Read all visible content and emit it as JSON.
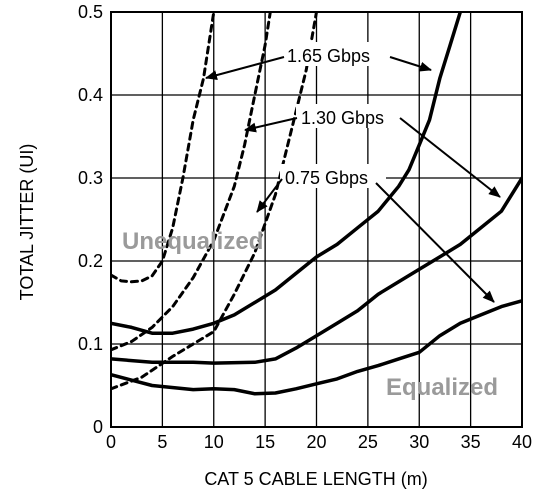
{
  "chart_data": {
    "type": "line",
    "xlabel": "CAT 5 CABLE LENGTH (m)",
    "ylabel": "TOTAL JITTER (UI)",
    "xlim": [
      0,
      40
    ],
    "ylim": [
      0,
      0.5
    ],
    "x_ticks": [
      "0",
      "5",
      "10",
      "15",
      "20",
      "25",
      "30",
      "35",
      "40"
    ],
    "y_ticks": [
      "0",
      "0.1",
      "0.2",
      "0.3",
      "0.4",
      "0.5"
    ],
    "grid": true,
    "region_labels": {
      "unequalized": "Unequalized",
      "equalized": "Equalized"
    },
    "rate_labels": [
      "1.65 Gbps",
      "1.30 Gbps",
      "0.75 Gbps"
    ],
    "series": [
      {
        "name": "1.65 Gbps",
        "group": "Unequalized",
        "style": "dashed",
        "points": [
          [
            0,
            0.183
          ],
          [
            1,
            0.176
          ],
          [
            2,
            0.175
          ],
          [
            3,
            0.176
          ],
          [
            4,
            0.182
          ],
          [
            5,
            0.2
          ],
          [
            6,
            0.24
          ],
          [
            7,
            0.3
          ],
          [
            8,
            0.37
          ],
          [
            9,
            0.42
          ],
          [
            10,
            0.5
          ]
        ]
      },
      {
        "name": "1.30 Gbps",
        "group": "Unequalized",
        "style": "dashed",
        "points": [
          [
            0,
            0.093
          ],
          [
            2,
            0.103
          ],
          [
            4,
            0.12
          ],
          [
            6,
            0.145
          ],
          [
            8,
            0.18
          ],
          [
            10,
            0.225
          ],
          [
            12,
            0.29
          ],
          [
            13,
            0.34
          ],
          [
            14,
            0.4
          ],
          [
            15,
            0.46
          ],
          [
            15.5,
            0.5
          ]
        ]
      },
      {
        "name": "0.75 Gbps",
        "group": "Unequalized",
        "style": "dashed",
        "points": [
          [
            0,
            0.046
          ],
          [
            3,
            0.06
          ],
          [
            6,
            0.085
          ],
          [
            8,
            0.1
          ],
          [
            10,
            0.115
          ],
          [
            12,
            0.16
          ],
          [
            14,
            0.21
          ],
          [
            16,
            0.28
          ],
          [
            18,
            0.38
          ],
          [
            19,
            0.43
          ],
          [
            20,
            0.5
          ]
        ]
      },
      {
        "name": "1.65 Gbps",
        "group": "Equalized",
        "style": "solid",
        "points": [
          [
            0,
            0.125
          ],
          [
            2,
            0.12
          ],
          [
            4,
            0.113
          ],
          [
            6,
            0.113
          ],
          [
            8,
            0.118
          ],
          [
            10,
            0.125
          ],
          [
            12,
            0.135
          ],
          [
            14,
            0.15
          ],
          [
            16,
            0.165
          ],
          [
            18,
            0.185
          ],
          [
            20,
            0.205
          ],
          [
            22,
            0.22
          ],
          [
            24,
            0.24
          ],
          [
            26,
            0.26
          ],
          [
            28,
            0.29
          ],
          [
            29,
            0.31
          ],
          [
            30,
            0.34
          ],
          [
            31,
            0.37
          ],
          [
            32,
            0.42
          ],
          [
            33,
            0.46
          ],
          [
            34,
            0.5
          ]
        ]
      },
      {
        "name": "1.30 Gbps",
        "group": "Equalized",
        "style": "solid",
        "points": [
          [
            0,
            0.082
          ],
          [
            4,
            0.078
          ],
          [
            8,
            0.078
          ],
          [
            10,
            0.077
          ],
          [
            14,
            0.078
          ],
          [
            16,
            0.082
          ],
          [
            18,
            0.095
          ],
          [
            20,
            0.11
          ],
          [
            22,
            0.125
          ],
          [
            24,
            0.14
          ],
          [
            26,
            0.16
          ],
          [
            28,
            0.175
          ],
          [
            30,
            0.19
          ],
          [
            32,
            0.205
          ],
          [
            34,
            0.22
          ],
          [
            36,
            0.24
          ],
          [
            38,
            0.26
          ],
          [
            40,
            0.3
          ]
        ]
      },
      {
        "name": "0.75 Gbps",
        "group": "Equalized",
        "style": "solid",
        "points": [
          [
            0,
            0.063
          ],
          [
            4,
            0.05
          ],
          [
            8,
            0.045
          ],
          [
            10,
            0.046
          ],
          [
            12,
            0.045
          ],
          [
            14,
            0.04
          ],
          [
            16,
            0.041
          ],
          [
            18,
            0.046
          ],
          [
            20,
            0.052
          ],
          [
            22,
            0.058
          ],
          [
            24,
            0.067
          ],
          [
            26,
            0.074
          ],
          [
            28,
            0.082
          ],
          [
            30,
            0.09
          ],
          [
            32,
            0.11
          ],
          [
            34,
            0.125
          ],
          [
            36,
            0.135
          ],
          [
            38,
            0.145
          ],
          [
            40,
            0.152
          ]
        ]
      }
    ]
  }
}
